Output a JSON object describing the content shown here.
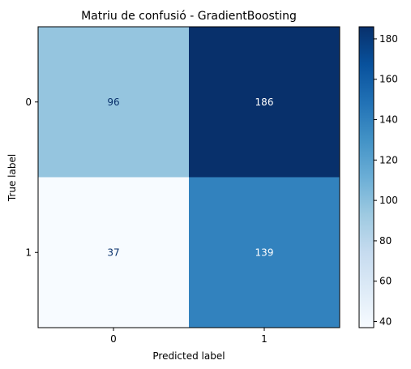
{
  "chart_data": {
    "type": "heatmap",
    "title": "Matriu de confusió - GradientBoosting",
    "xlabel": "Predicted label",
    "ylabel": "True label",
    "x_categories": [
      "0",
      "1"
    ],
    "y_categories": [
      "0",
      "1"
    ],
    "values": [
      [
        96,
        186
      ],
      [
        37,
        139
      ]
    ],
    "colormap": "Blues",
    "colorbar": {
      "min": 37,
      "max": 186,
      "ticks": [
        "40",
        "60",
        "80",
        "100",
        "120",
        "140",
        "160",
        "180"
      ]
    },
    "colors": {
      "low": "#f7fbff",
      "high": "#08306b",
      "text_light": "#ffffff",
      "text_dark": "#08306b"
    }
  }
}
